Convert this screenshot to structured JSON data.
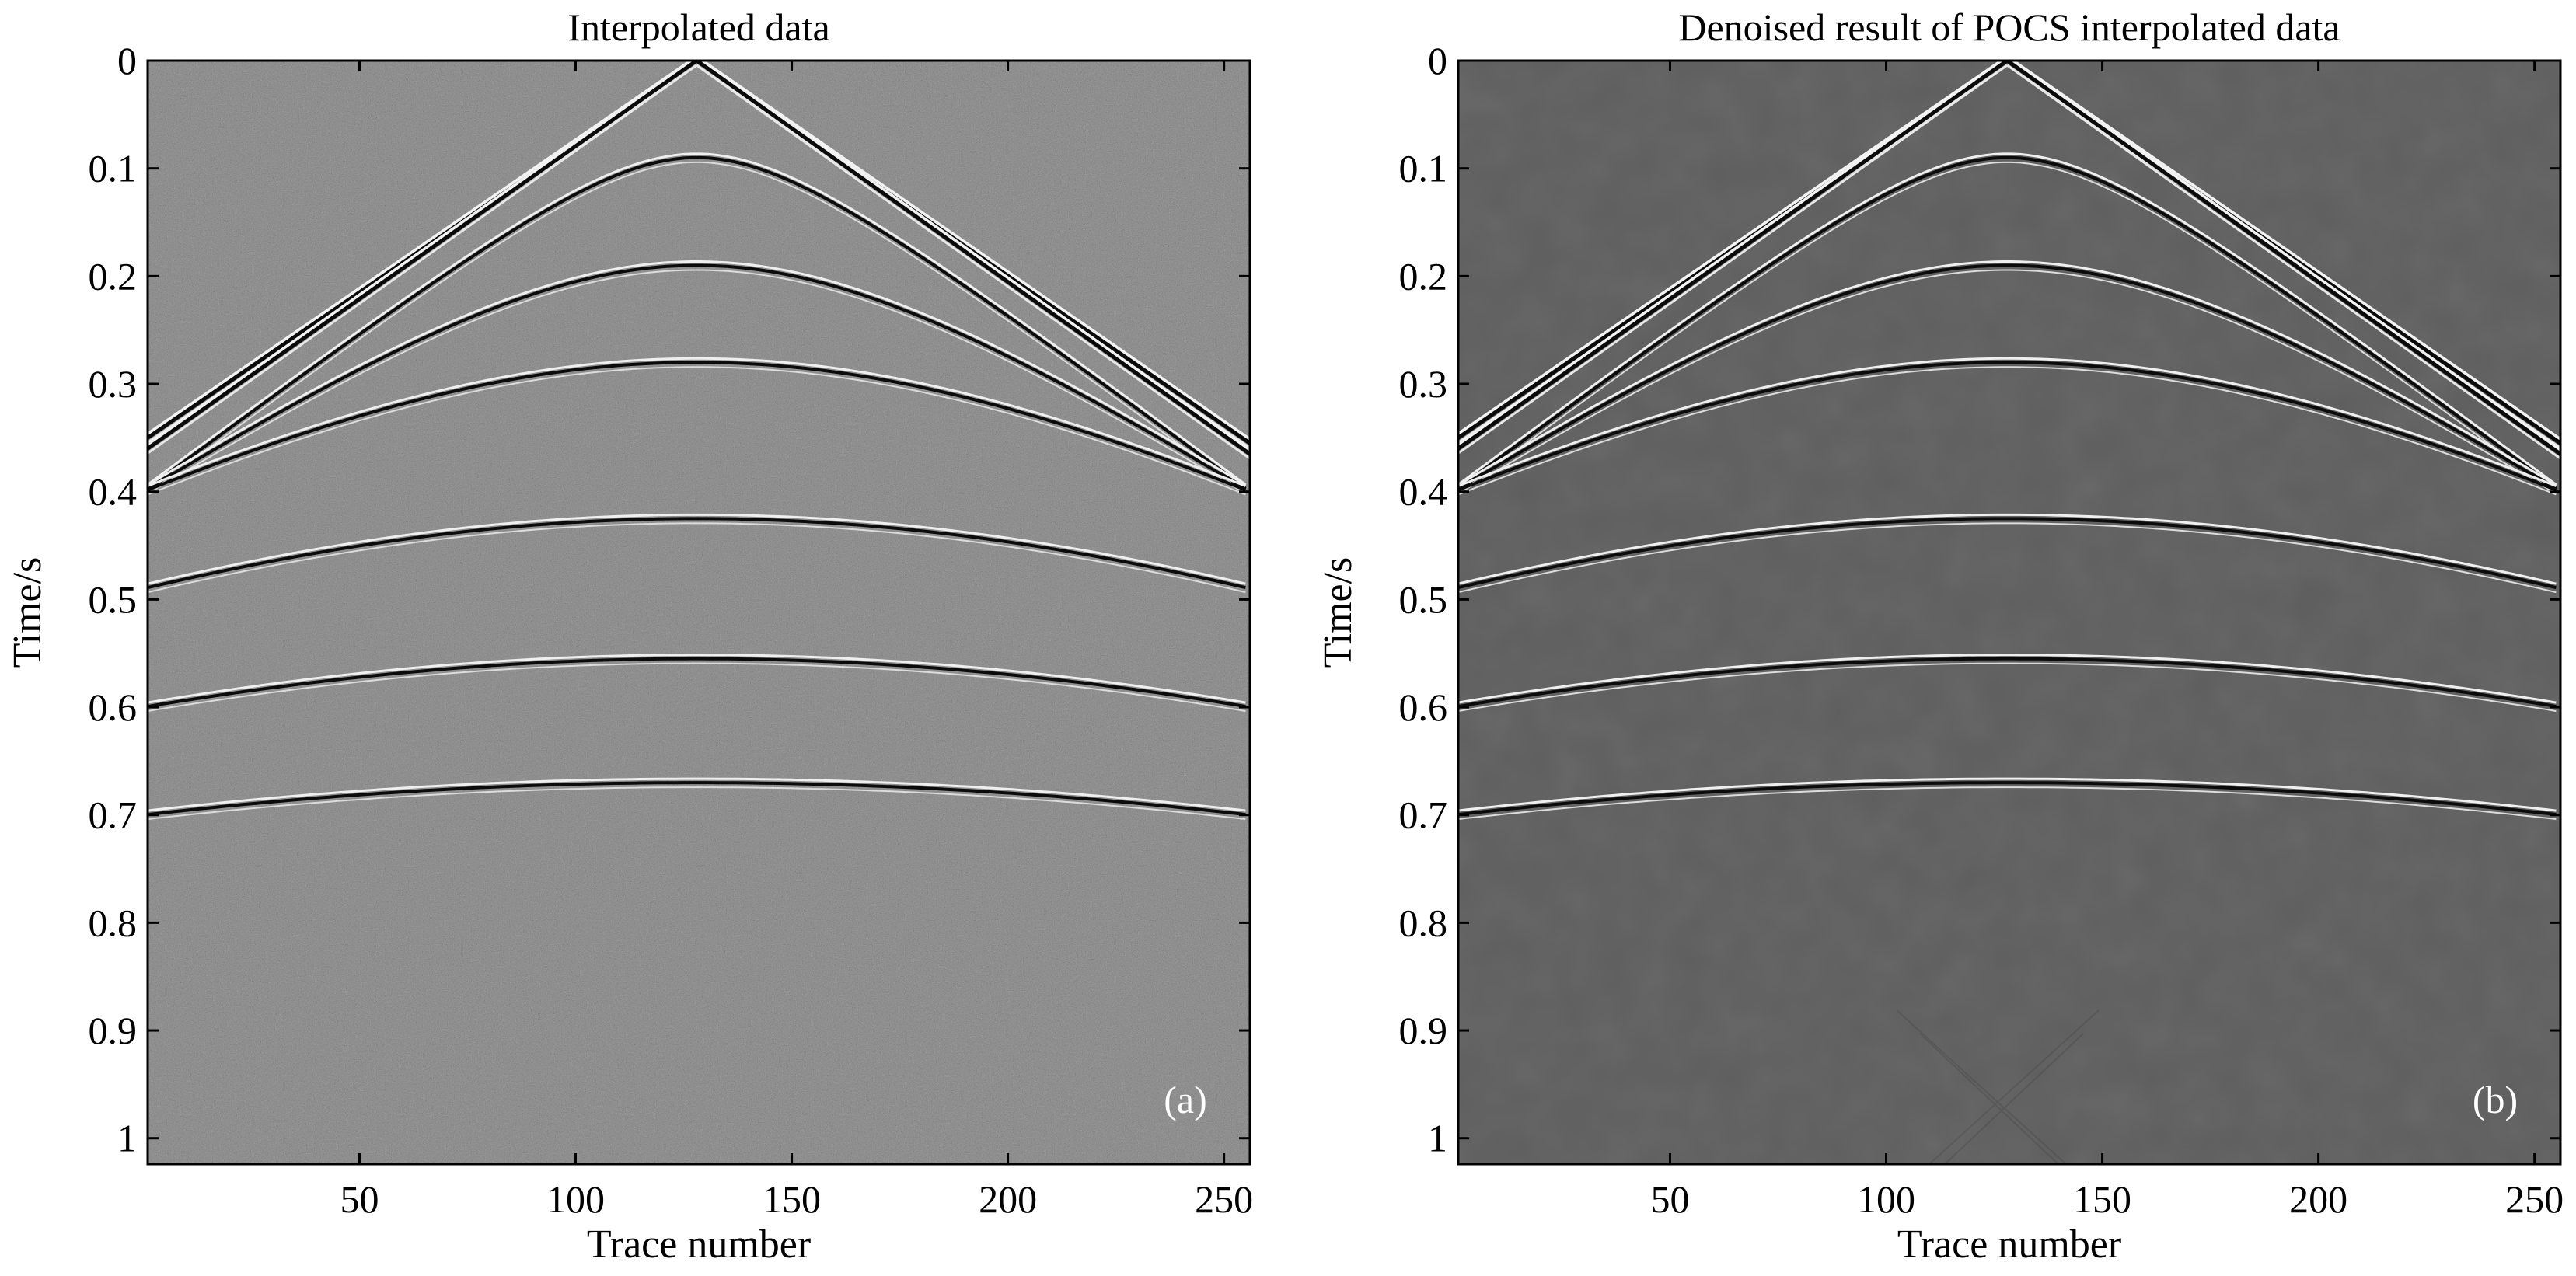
{
  "chart_data": [
    {
      "type": "heatmap",
      "panel": "(a)",
      "title": "Interpolated data",
      "xlabel": "Trace number",
      "ylabel": "Time/s",
      "xlim": [
        1,
        256
      ],
      "ylim": [
        0,
        1.024
      ],
      "xticks": [
        50,
        100,
        150,
        200,
        250
      ],
      "yticks": [
        "0",
        "0.1",
        "0.2",
        "0.3",
        "0.4",
        "0.5",
        "0.6",
        "0.7",
        "0.8",
        "0.9",
        "1"
      ],
      "yticks_values": [
        0,
        0.1,
        0.2,
        0.3,
        0.4,
        0.5,
        0.6,
        0.7,
        0.8,
        0.9,
        1.0
      ],
      "background": "#5a5a5a",
      "noise": "strong",
      "events": [
        {
          "kind": "linear",
          "apex_trace": 128,
          "apex_time": 0.0,
          "end_time_left": 0.35,
          "end_time_right": 0.355
        },
        {
          "kind": "linear",
          "apex_trace": 128,
          "apex_time": 0.0,
          "end_time_left": 0.36,
          "end_time_right": 0.365
        },
        {
          "kind": "hyperbola",
          "apex_trace": 128,
          "apex_time": 0.09,
          "edge_time": 0.4
        },
        {
          "kind": "hyperbola",
          "apex_trace": 128,
          "apex_time": 0.19,
          "edge_time": 0.4
        },
        {
          "kind": "hyperbola",
          "apex_trace": 128,
          "apex_time": 0.28,
          "edge_time": 0.4
        },
        {
          "kind": "hyperbola",
          "apex_trace": 128,
          "apex_time": 0.425,
          "edge_time": 0.49
        },
        {
          "kind": "hyperbola",
          "apex_trace": 128,
          "apex_time": 0.555,
          "edge_time": 0.6
        },
        {
          "kind": "hyperbola",
          "apex_trace": 128,
          "apex_time": 0.67,
          "edge_time": 0.7
        }
      ]
    },
    {
      "type": "heatmap",
      "panel": "(b)",
      "title": "Denoised result of POCS interpolated data",
      "xlabel": "Trace number",
      "ylabel": "Time/s",
      "xlim": [
        1,
        256
      ],
      "ylim": [
        0,
        1.024
      ],
      "xticks": [
        50,
        100,
        150,
        200,
        250
      ],
      "yticks": [
        "0",
        "0.1",
        "0.2",
        "0.3",
        "0.4",
        "0.5",
        "0.6",
        "0.7",
        "0.8",
        "0.9",
        "1"
      ],
      "yticks_values": [
        0,
        0.1,
        0.2,
        0.3,
        0.4,
        0.5,
        0.6,
        0.7,
        0.8,
        0.9,
        1.0
      ],
      "background": "#5e5e5e",
      "noise": "none",
      "events": [
        {
          "kind": "linear",
          "apex_trace": 128,
          "apex_time": 0.0,
          "end_time_left": 0.35,
          "end_time_right": 0.355
        },
        {
          "kind": "linear",
          "apex_trace": 128,
          "apex_time": 0.0,
          "end_time_left": 0.36,
          "end_time_right": 0.365
        },
        {
          "kind": "hyperbola",
          "apex_trace": 128,
          "apex_time": 0.09,
          "edge_time": 0.4
        },
        {
          "kind": "hyperbola",
          "apex_trace": 128,
          "apex_time": 0.19,
          "edge_time": 0.4
        },
        {
          "kind": "hyperbola",
          "apex_trace": 128,
          "apex_time": 0.28,
          "edge_time": 0.4
        },
        {
          "kind": "hyperbola",
          "apex_trace": 128,
          "apex_time": 0.425,
          "edge_time": 0.49
        },
        {
          "kind": "hyperbola",
          "apex_trace": 128,
          "apex_time": 0.555,
          "edge_time": 0.6
        },
        {
          "kind": "hyperbola",
          "apex_trace": 128,
          "apex_time": 0.67,
          "edge_time": 0.7
        }
      ]
    }
  ]
}
